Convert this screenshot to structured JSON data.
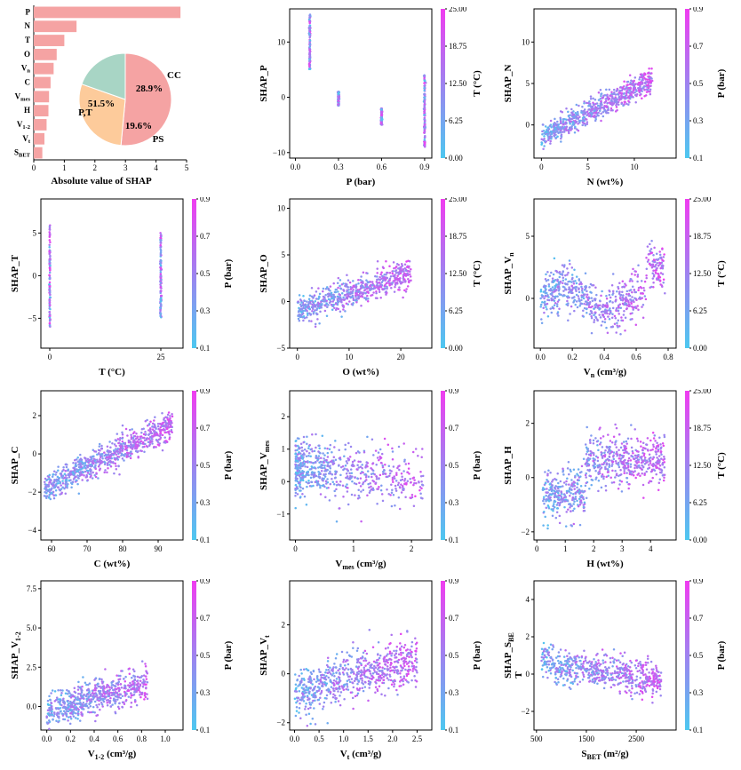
{
  "colors": {
    "bar": "#f5a3a3",
    "pie": {
      "P,T": "#f5a3a3",
      "CC": "#fdcb9b",
      "PS": "#a8d5c5"
    },
    "cmap_low": "#4dc8f0",
    "cmap_high": "#f03cf0"
  },
  "chart_data": [
    {
      "type": "bar",
      "orientation": "horizontal",
      "categories": [
        "P",
        "N",
        "T",
        "O",
        "Vn",
        "C",
        "Vmes",
        "H",
        "V1-2",
        "Vt",
        "SBET"
      ],
      "category_labels": [
        {
          "base": "P",
          "sub": ""
        },
        {
          "base": "N",
          "sub": ""
        },
        {
          "base": "T",
          "sub": ""
        },
        {
          "base": "O",
          "sub": ""
        },
        {
          "base": "V",
          "sub": "n"
        },
        {
          "base": "C",
          "sub": ""
        },
        {
          "base": "V",
          "sub": "mes"
        },
        {
          "base": "H",
          "sub": ""
        },
        {
          "base": "V",
          "sub": "1-2"
        },
        {
          "base": "V",
          "sub": "t"
        },
        {
          "base": "S",
          "sub": "BET"
        }
      ],
      "values": [
        4.8,
        1.4,
        1.0,
        0.75,
        0.65,
        0.55,
        0.5,
        0.48,
        0.42,
        0.35,
        0.28
      ],
      "xlabel": "Absolute value of SHAP",
      "xlim": [
        0,
        5
      ],
      "xticks": [
        "0",
        "1",
        "2",
        "3",
        "4",
        "5"
      ],
      "inset_pie": {
        "type": "pie",
        "slices": [
          {
            "label": "P,T",
            "value": 51.5,
            "text": "51.5%"
          },
          {
            "label": "CC",
            "value": 28.9,
            "text": "28.9%"
          },
          {
            "label": "PS",
            "value": 19.6,
            "text": "19.6%"
          }
        ]
      }
    },
    {
      "type": "scatter",
      "id": "shap-p",
      "xlabel": {
        "base": "P (bar)",
        "sub": "",
        "suffix": ""
      },
      "ylabel": {
        "base": "SHAP_P",
        "sub": ""
      },
      "xlim": [
        -0.04,
        0.95
      ],
      "ylim": [
        -11,
        16
      ],
      "xticks": [
        {
          "v": 0,
          "t": "0.0"
        },
        {
          "v": 0.3,
          "t": "0.3"
        },
        {
          "v": 0.6,
          "t": "0.6"
        },
        {
          "v": 0.9,
          "t": "0.9"
        }
      ],
      "yticks": [
        {
          "v": -10,
          "t": "−10"
        },
        {
          "v": 0,
          "t": "0"
        },
        {
          "v": 10,
          "t": "10"
        }
      ],
      "colorbar": {
        "label": "T (°C)",
        "ticks": [
          "25.00",
          "18.75",
          "12.50",
          "6.25",
          "0.00"
        ]
      },
      "pattern": "strips",
      "strips": [
        [
          0.1,
          5,
          15
        ],
        [
          0.3,
          -1.5,
          1
        ],
        [
          0.6,
          -5,
          -2
        ],
        [
          0.9,
          -9,
          4
        ]
      ]
    },
    {
      "type": "scatter",
      "id": "shap-n",
      "xlabel": {
        "base": "N (wt%)",
        "sub": ""
      },
      "ylabel": {
        "base": "SHAP_N",
        "sub": ""
      },
      "xlim": [
        -0.8,
        14.5
      ],
      "ylim": [
        -4,
        14
      ],
      "xticks": [
        {
          "v": 0,
          "t": "0"
        },
        {
          "v": 5,
          "t": "5"
        },
        {
          "v": 10,
          "t": "10"
        }
      ],
      "yticks": [
        {
          "v": 0,
          "t": "0"
        },
        {
          "v": 5,
          "t": "5"
        },
        {
          "v": 10,
          "t": "10"
        }
      ],
      "colorbar": {
        "label": "P (bar)",
        "ticks": [
          "0.9",
          "0.7",
          "0.5",
          "0.3",
          "0.1"
        ]
      },
      "pattern": "trend",
      "trend": {
        "x0": 0,
        "x1": 12,
        "y0": -1.5,
        "y1": 5.5,
        "spread": 1.6,
        "n": 700
      }
    },
    {
      "type": "scatter",
      "id": "shap-t",
      "xlabel": {
        "base": "T (°C)",
        "sub": ""
      },
      "ylabel": {
        "base": "SHAP_T",
        "sub": ""
      },
      "xlim": [
        -2,
        30
      ],
      "ylim": [
        -8.5,
        9
      ],
      "xticks": [
        {
          "v": 0,
          "t": "0"
        },
        {
          "v": 25,
          "t": "25"
        }
      ],
      "yticks": [
        {
          "v": -5,
          "t": "−5"
        },
        {
          "v": 0,
          "t": "0"
        },
        {
          "v": 5,
          "t": "5"
        }
      ],
      "colorbar": {
        "label": "P (bar)",
        "ticks": [
          "0.9",
          "0.7",
          "0.5",
          "0.3",
          "0.1"
        ]
      },
      "pattern": "strips",
      "strips": [
        [
          0,
          -6,
          6
        ],
        [
          25,
          -5,
          5
        ]
      ]
    },
    {
      "type": "scatter",
      "id": "shap-o",
      "xlabel": {
        "base": "O (wt%)",
        "sub": ""
      },
      "ylabel": {
        "base": "SHAP_O",
        "sub": ""
      },
      "xlim": [
        -1.5,
        26
      ],
      "ylim": [
        -5,
        11
      ],
      "xticks": [
        {
          "v": 0,
          "t": "0"
        },
        {
          "v": 10,
          "t": "10"
        },
        {
          "v": 20,
          "t": "20"
        }
      ],
      "yticks": [
        {
          "v": -5,
          "t": "−5"
        },
        {
          "v": 0,
          "t": "0"
        },
        {
          "v": 5,
          "t": "5"
        },
        {
          "v": 10,
          "t": "10"
        }
      ],
      "colorbar": {
        "label": "T (°C)",
        "ticks": [
          "25.00",
          "18.75",
          "12.50",
          "6.25",
          "0.00"
        ]
      },
      "pattern": "trend",
      "trend": {
        "x0": 0,
        "x1": 22,
        "y0": -1,
        "y1": 3,
        "spread": 1.6,
        "n": 650
      }
    },
    {
      "type": "scatter",
      "id": "shap-vn",
      "xlabel": {
        "base": "V",
        "sub": "n",
        "suffix": " (cm³/g)"
      },
      "ylabel": {
        "base": "SHAP_V",
        "sub": "n"
      },
      "xlim": [
        -0.04,
        0.85
      ],
      "ylim": [
        -4,
        8
      ],
      "xticks": [
        {
          "v": 0,
          "t": "0.0"
        },
        {
          "v": 0.2,
          "t": "0.2"
        },
        {
          "v": 0.4,
          "t": "0.4"
        },
        {
          "v": 0.6,
          "t": "0.6"
        },
        {
          "v": 0.8,
          "t": "0.8"
        }
      ],
      "yticks": [
        {
          "v": 0,
          "t": "0"
        },
        {
          "v": 5,
          "t": "5"
        }
      ],
      "colorbar": {
        "label": "T (°C)",
        "ticks": [
          "25.00",
          "18.75",
          "12.50",
          "6.25",
          "0.00"
        ]
      },
      "pattern": "wave",
      "trend": {
        "x0": 0,
        "x1": 0.78,
        "y0": 0,
        "y1": 1,
        "spread": 2.0,
        "n": 650
      }
    },
    {
      "type": "scatter",
      "id": "shap-c",
      "xlabel": {
        "base": "C (wt%)",
        "sub": ""
      },
      "ylabel": {
        "base": "SHAP_C",
        "sub": ""
      },
      "xlim": [
        57,
        97
      ],
      "ylim": [
        -4.5,
        3.3
      ],
      "xticks": [
        {
          "v": 60,
          "t": "60"
        },
        {
          "v": 70,
          "t": "70"
        },
        {
          "v": 80,
          "t": "80"
        },
        {
          "v": 90,
          "t": "90"
        }
      ],
      "yticks": [
        {
          "v": -4,
          "t": "−4"
        },
        {
          "v": -2,
          "t": "−2"
        },
        {
          "v": 0,
          "t": "0"
        },
        {
          "v": 2,
          "t": "2"
        }
      ],
      "colorbar": {
        "label": "P (bar)",
        "ticks": [
          "0.9",
          "0.7",
          "0.5",
          "0.3",
          "0.1"
        ]
      },
      "pattern": "trend",
      "trend": {
        "x0": 58,
        "x1": 94,
        "y0": -1.8,
        "y1": 1.5,
        "spread": 0.8,
        "n": 800
      }
    },
    {
      "type": "scatter",
      "id": "shap-vmes",
      "xlabel": {
        "base": "V",
        "sub": "mes",
        "suffix": " (cm³/g)"
      },
      "ylabel": {
        "base": "SHAP_V",
        "sub": "mes"
      },
      "xlim": [
        -0.1,
        2.35
      ],
      "ylim": [
        -1.8,
        2.8
      ],
      "xticks": [
        {
          "v": 0,
          "t": "0"
        },
        {
          "v": 1,
          "t": "1"
        },
        {
          "v": 2,
          "t": "2"
        }
      ],
      "yticks": [
        {
          "v": -1,
          "t": "−1"
        },
        {
          "v": 0,
          "t": "0"
        },
        {
          "v": 1,
          "t": "1"
        },
        {
          "v": 2,
          "t": "2"
        }
      ],
      "colorbar": {
        "label": "P (bar)",
        "ticks": [
          "0.9",
          "0.7",
          "0.5",
          "0.3",
          "0.1"
        ]
      },
      "pattern": "decay",
      "trend": {
        "x0": 0,
        "x1": 2.2,
        "y0": 0.5,
        "y1": 0,
        "spread": 1.0,
        "n": 650
      }
    },
    {
      "type": "scatter",
      "id": "shap-h",
      "xlabel": {
        "base": "H (wt%)",
        "sub": ""
      },
      "ylabel": {
        "base": "SHAP_H",
        "sub": ""
      },
      "xlim": [
        -0.1,
        4.9
      ],
      "ylim": [
        -2.3,
        3.2
      ],
      "xticks": [
        {
          "v": 0,
          "t": "0"
        },
        {
          "v": 1,
          "t": "1"
        },
        {
          "v": 2,
          "t": "2"
        },
        {
          "v": 3,
          "t": "3"
        },
        {
          "v": 4,
          "t": "4"
        }
      ],
      "yticks": [
        {
          "v": -2,
          "t": "−2"
        },
        {
          "v": 0,
          "t": "0"
        },
        {
          "v": 2,
          "t": "2"
        }
      ],
      "colorbar": {
        "label": "T (°C)",
        "ticks": [
          "25.00",
          "18.75",
          "12.50",
          "6.25",
          "0.00"
        ]
      },
      "pattern": "step",
      "trend": {
        "x0": 0.2,
        "x1": 4.5,
        "y0": -0.7,
        "y1": 0.8,
        "spread": 1.0,
        "n": 750
      }
    },
    {
      "type": "scatter",
      "id": "shap-v12",
      "xlabel": {
        "base": "V",
        "sub": "1-2",
        "suffix": " (cm³/g)"
      },
      "ylabel": {
        "base": "SHAP_V",
        "sub": "1-2"
      },
      "xlim": [
        -0.05,
        1.15
      ],
      "ylim": [
        -1.5,
        8
      ],
      "xticks": [
        {
          "v": 0,
          "t": "0.0"
        },
        {
          "v": 0.2,
          "t": "0.2"
        },
        {
          "v": 0.4,
          "t": "0.4"
        },
        {
          "v": 0.6,
          "t": "0.6"
        },
        {
          "v": 0.8,
          "t": "0.8"
        },
        {
          "v": 1.0,
          "t": "1.0"
        }
      ],
      "yticks": [
        {
          "v": 0,
          "t": "0.0"
        },
        {
          "v": 2.5,
          "t": "2.5"
        },
        {
          "v": 5,
          "t": "5.0"
        },
        {
          "v": 7.5,
          "t": "7.5"
        }
      ],
      "colorbar": {
        "label": "P (bar)",
        "ticks": [
          "0.9",
          "0.7",
          "0.5",
          "0.3",
          "0.1"
        ]
      },
      "pattern": "trend",
      "trend": {
        "x0": 0,
        "x1": 0.85,
        "y0": -0.3,
        "y1": 1.5,
        "spread": 1.2,
        "n": 650
      }
    },
    {
      "type": "scatter",
      "id": "shap-vt",
      "xlabel": {
        "base": "V",
        "sub": "t",
        "suffix": " (cm³/g)"
      },
      "ylabel": {
        "base": "SHAP_V",
        "sub": "t"
      },
      "xlim": [
        -0.1,
        2.8
      ],
      "ylim": [
        -2.3,
        3.8
      ],
      "xticks": [
        {
          "v": 0,
          "t": "0.0"
        },
        {
          "v": 0.5,
          "t": "0.5"
        },
        {
          "v": 1.0,
          "t": "1.0"
        },
        {
          "v": 1.5,
          "t": "1.5"
        },
        {
          "v": 2.0,
          "t": "2.0"
        },
        {
          "v": 2.5,
          "t": "2.5"
        }
      ],
      "yticks": [
        {
          "v": -2,
          "t": "−2"
        },
        {
          "v": 0,
          "t": "0"
        },
        {
          "v": 2,
          "t": "2"
        }
      ],
      "colorbar": {
        "label": "P (bar)",
        "ticks": [
          "0.9",
          "0.7",
          "0.5",
          "0.3",
          "0.1"
        ]
      },
      "pattern": "trend",
      "trend": {
        "x0": 0,
        "x1": 2.5,
        "y0": -0.8,
        "y1": 0.6,
        "spread": 1.1,
        "n": 700
      }
    },
    {
      "type": "scatter",
      "id": "shap-sbet",
      "xlabel": {
        "base": "S",
        "sub": "BET",
        "suffix": " (m²/g)"
      },
      "ylabel": {
        "base": "SHAP_S",
        "sub": "BE",
        "line2": "T"
      },
      "xlim": [
        450,
        3300
      ],
      "ylim": [
        -3,
        5
      ],
      "xticks": [
        {
          "v": 500,
          "t": "500"
        },
        {
          "v": 1500,
          "t": "1500"
        },
        {
          "v": 2500,
          "t": "2500"
        }
      ],
      "yticks": [
        {
          "v": -2,
          "t": "−2"
        },
        {
          "v": 0,
          "t": "0"
        },
        {
          "v": 2,
          "t": "2"
        },
        {
          "v": 4,
          "t": "4"
        }
      ],
      "colorbar": {
        "label": "P (bar)",
        "ticks": [
          "0.9",
          "0.7",
          "0.5",
          "0.3",
          "0.1"
        ]
      },
      "pattern": "hump",
      "trend": {
        "x0": 600,
        "x1": 3000,
        "y0": 0.5,
        "y1": -0.6,
        "spread": 1.0,
        "n": 650
      }
    }
  ]
}
